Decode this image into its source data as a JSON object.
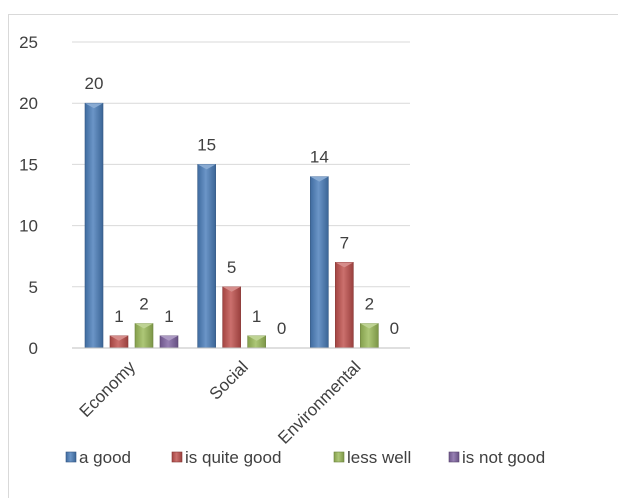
{
  "chart_data": {
    "type": "bar",
    "categories": [
      "Economy",
      "Social",
      "Environmental"
    ],
    "series": [
      {
        "name": "a good",
        "values": [
          20,
          15,
          14
        ],
        "color": "#4a7ebb"
      },
      {
        "name": "is quite good",
        "values": [
          1,
          5,
          7
        ],
        "color": "#c0504d"
      },
      {
        "name": "less well",
        "values": [
          2,
          1,
          2
        ],
        "color": "#9bbb59"
      },
      {
        "name": "is not good",
        "values": [
          1,
          0,
          0
        ],
        "color": "#8064a2"
      }
    ],
    "ylim": [
      0,
      25
    ],
    "yticks": [
      0,
      5,
      10,
      15,
      20,
      25
    ],
    "grid": true,
    "legend_position": "bottom",
    "title": "",
    "xlabel": "",
    "ylabel": ""
  }
}
